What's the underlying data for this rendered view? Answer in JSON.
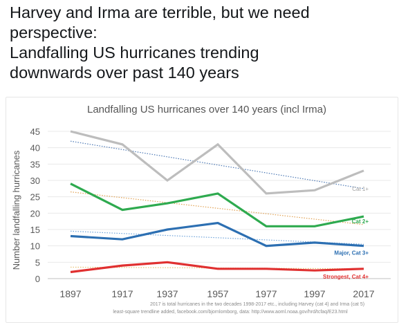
{
  "tweet": {
    "lines": [
      "Harvey and Irma are terrible, but we need",
      "perspective:",
      "Landfalling US hurricanes trending",
      "downwards over past 140 years"
    ]
  },
  "chart_data": {
    "type": "line",
    "title": "Landfalling US hurricanes over 140 years (incl Irma)",
    "xlabel": "",
    "ylabel": "Number landfalling hurricanes",
    "x": [
      1897,
      1917,
      1937,
      1957,
      1977,
      1997,
      2017
    ],
    "ylim": [
      0,
      45
    ],
    "yticks": [
      0,
      5,
      10,
      15,
      20,
      25,
      30,
      35,
      40,
      45
    ],
    "grid": true,
    "series": [
      {
        "name": "Cat 1+",
        "color": "#bdbdbd",
        "values": [
          45,
          41,
          30,
          41,
          26,
          27,
          33
        ],
        "trend": [
          42,
          27.5
        ],
        "trend_color": "#4a77b4"
      },
      {
        "name": "Cat 2+",
        "color": "#2eaa4f",
        "values": [
          29,
          21,
          23,
          26,
          16,
          16,
          19
        ],
        "trend": [
          26.5,
          16.5
        ],
        "trend_color": "#e0a050"
      },
      {
        "name": "Major, Cat 3+",
        "color": "#2c6fb2",
        "values": [
          13,
          12,
          15,
          17,
          10,
          11,
          10
        ],
        "trend": [
          14.5,
          10.5
        ],
        "trend_color": "#6aa0d8"
      },
      {
        "name": "Strongest, Cat 4+",
        "color": "#e03030",
        "values": [
          2,
          4,
          5,
          3,
          3,
          2.5,
          3
        ],
        "trend": [
          3.5,
          3.0
        ],
        "trend_color": "#e8c070"
      }
    ],
    "notes": [
      "2017 is total hurricanes in the two decades 1998-2017 etc., including Harvey (cat 4) and Irma (cat 5)",
      "least-square trendline added, facebook.com/bjornlomborg, data: http://www.aoml.noaa.gov/hrd/tcfaq/E23.html"
    ]
  }
}
